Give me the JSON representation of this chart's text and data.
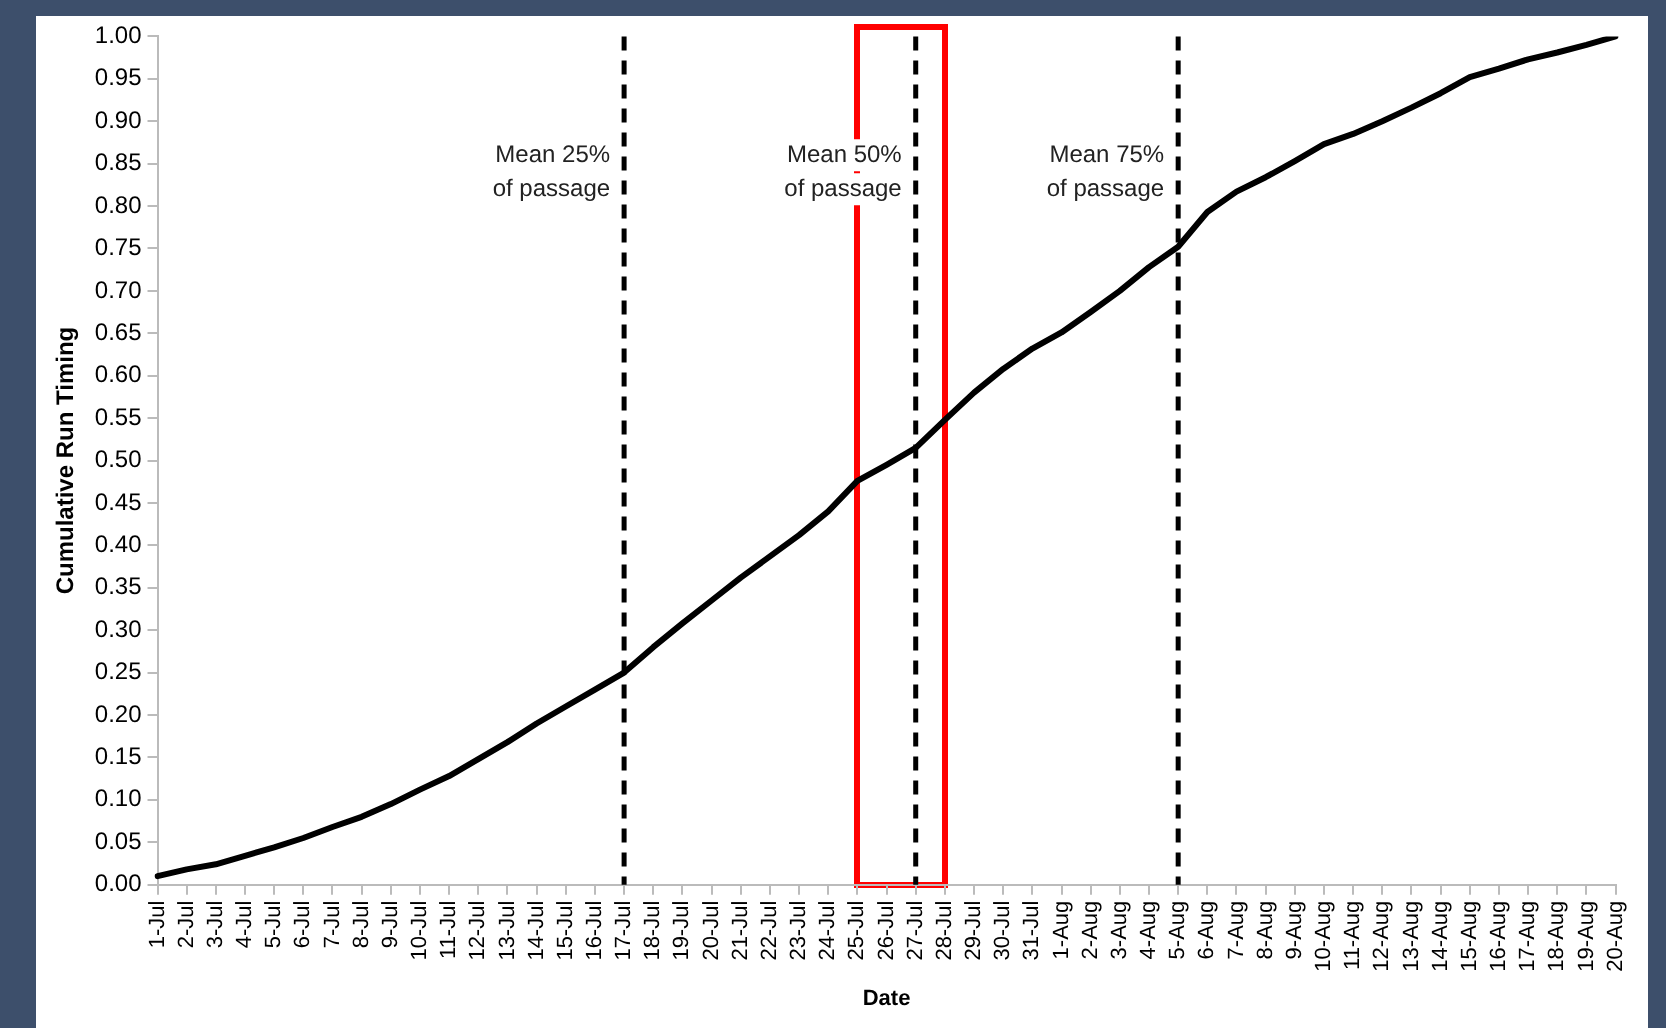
{
  "chart_data": {
    "type": "line",
    "xlabel": "Date",
    "ylabel": "Cumulative Run Timing",
    "categories": [
      "1-Jul",
      "2-Jul",
      "3-Jul",
      "4-Jul",
      "5-Jul",
      "6-Jul",
      "7-Jul",
      "8-Jul",
      "9-Jul",
      "10-Jul",
      "11-Jul",
      "12-Jul",
      "13-Jul",
      "14-Jul",
      "15-Jul",
      "16-Jul",
      "17-Jul",
      "18-Jul",
      "19-Jul",
      "20-Jul",
      "21-Jul",
      "22-Jul",
      "23-Jul",
      "24-Jul",
      "25-Jul",
      "26-Jul",
      "27-Jul",
      "28-Jul",
      "29-Jul",
      "30-Jul",
      "31-Jul",
      "1-Aug",
      "2-Aug",
      "3-Aug",
      "4-Aug",
      "5-Aug",
      "6-Aug",
      "7-Aug",
      "8-Aug",
      "9-Aug",
      "10-Aug",
      "11-Aug",
      "12-Aug",
      "13-Aug",
      "14-Aug",
      "15-Aug",
      "16-Aug",
      "17-Aug",
      "18-Aug",
      "19-Aug",
      "20-Aug"
    ],
    "series": [
      {
        "color": "#000000",
        "values": [
          0.01,
          0.018,
          0.024,
          0.034,
          0.044,
          0.055,
          0.068,
          0.08,
          0.095,
          0.112,
          0.128,
          0.148,
          0.168,
          0.19,
          0.21,
          0.23,
          0.25,
          0.28,
          0.308,
          0.335,
          0.362,
          0.387,
          0.412,
          0.44,
          0.476,
          0.495,
          0.515,
          0.548,
          0.58,
          0.608,
          0.632,
          0.651,
          0.675,
          0.7,
          0.728,
          0.752,
          0.793,
          0.817,
          0.834,
          0.853,
          0.873,
          0.885,
          0.9,
          0.916,
          0.933,
          0.952,
          0.962,
          0.973,
          0.981,
          0.99,
          1.0
        ]
      }
    ],
    "ylim": [
      0,
      1
    ],
    "yticks": [
      {
        "value": 0,
        "label": "0.00"
      },
      {
        "value": 0.05,
        "label": "0.05"
      },
      {
        "value": 0.1,
        "label": "0.10"
      },
      {
        "value": 0.15,
        "label": "0.15"
      },
      {
        "value": 0.2,
        "label": "0.20"
      },
      {
        "value": 0.25,
        "label": "0.25"
      },
      {
        "value": 0.3,
        "label": "0.30"
      },
      {
        "value": 0.35,
        "label": "0.35"
      },
      {
        "value": 0.4,
        "label": "0.40"
      },
      {
        "value": 0.45,
        "label": "0.45"
      },
      {
        "value": 0.5,
        "label": "0.50"
      },
      {
        "value": 0.55,
        "label": "0.55"
      },
      {
        "value": 0.6,
        "label": "0.60"
      },
      {
        "value": 0.65,
        "label": "0.65"
      },
      {
        "value": 0.7,
        "label": "0.70"
      },
      {
        "value": 0.75,
        "label": "0.75"
      },
      {
        "value": 0.8,
        "label": "0.80"
      },
      {
        "value": 0.85,
        "label": "0.85"
      },
      {
        "value": 0.9,
        "label": "0.90"
      },
      {
        "value": 0.95,
        "label": "0.95"
      },
      {
        "value": 1,
        "label": "1.00"
      }
    ],
    "ref_lines": [
      {
        "axis": "x",
        "value": "17-Jul",
        "label": "Mean 25%\nof passage",
        "color": "#000000",
        "line_style": "dashed"
      },
      {
        "axis": "x",
        "value": "27-Jul",
        "label": "Mean 50%\nof passage",
        "color": "#000000",
        "line_style": "dashed"
      },
      {
        "axis": "x",
        "value": "5-Aug",
        "label": "Mean 75%\nof passage",
        "color": "#000000",
        "line_style": "dashed"
      }
    ],
    "grid": false,
    "legend": false,
    "marker": "none",
    "line_style": "solid"
  }
}
